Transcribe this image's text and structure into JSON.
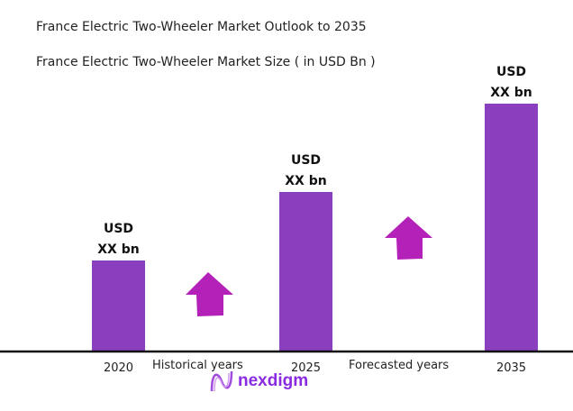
{
  "chart_data": {
    "type": "bar",
    "title": "France Electric Two-Wheeler Market Outlook to 2035",
    "subtitle": "France Electric Two-Wheeler Market Size ( in USD Bn )",
    "categories": [
      "2020",
      "2025",
      "2035"
    ],
    "values_relative": [
      1.0,
      1.76,
      2.74
    ],
    "data_labels": [
      {
        "line1": "USD",
        "line2": "XX bn"
      },
      {
        "line1": "USD",
        "line2": "XX bn"
      },
      {
        "line1": "USD",
        "line2": "XX bn"
      }
    ],
    "annotations": [
      "Historical years",
      "Forecasted years"
    ],
    "grid": false,
    "colors": {
      "bar": "#8a40be",
      "arrow": "#b321b8",
      "axis": "#111111"
    }
  },
  "logo": {
    "text": "nexdigm",
    "color": "#8a2be2"
  }
}
